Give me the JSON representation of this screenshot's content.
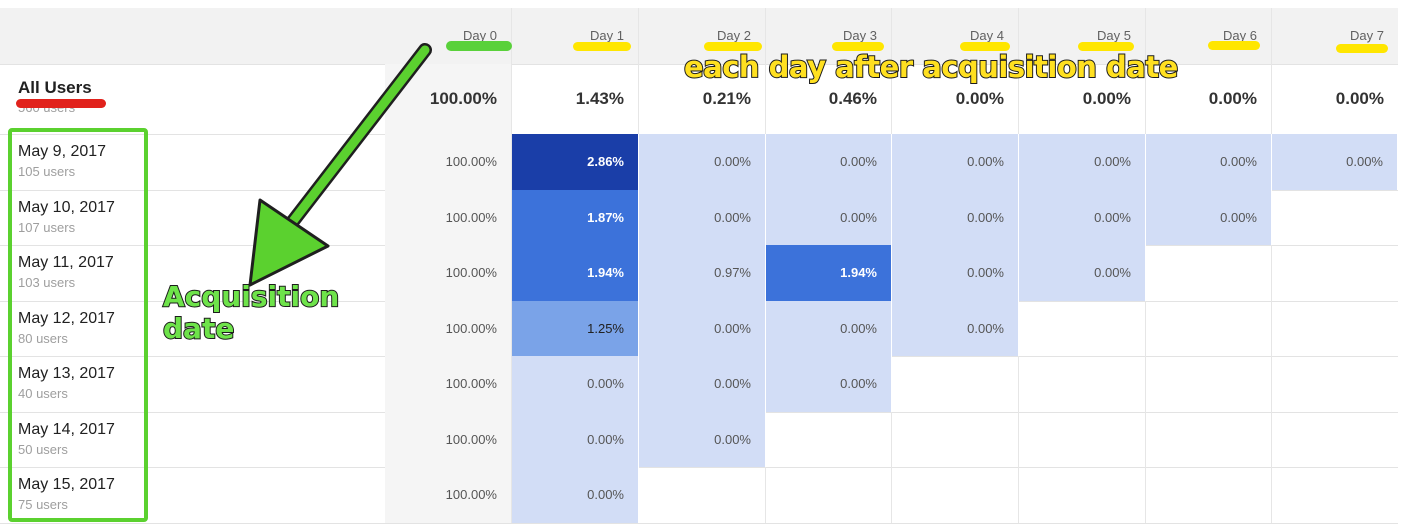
{
  "columns": [
    "Day 0",
    "Day 1",
    "Day 2",
    "Day 3",
    "Day 4",
    "Day 5",
    "Day 6",
    "Day 7"
  ],
  "all_users": {
    "label": "All Users",
    "sublabel": "560 users",
    "values": [
      "100.00%",
      "1.43%",
      "0.21%",
      "0.46%",
      "0.00%",
      "0.00%",
      "0.00%",
      "0.00%"
    ]
  },
  "rows": [
    {
      "date": "May 9, 2017",
      "users": "105 users",
      "values": [
        "100.00%",
        "2.86%",
        "0.00%",
        "0.00%",
        "0.00%",
        "0.00%",
        "0.00%",
        "0.00%"
      ]
    },
    {
      "date": "May 10, 2017",
      "users": "107 users",
      "values": [
        "100.00%",
        "1.87%",
        "0.00%",
        "0.00%",
        "0.00%",
        "0.00%",
        "0.00%"
      ]
    },
    {
      "date": "May 11, 2017",
      "users": "103 users",
      "values": [
        "100.00%",
        "1.94%",
        "0.97%",
        "1.94%",
        "0.00%",
        "0.00%"
      ]
    },
    {
      "date": "May 12, 2017",
      "users": "80 users",
      "values": [
        "100.00%",
        "1.25%",
        "0.00%",
        "0.00%",
        "0.00%"
      ]
    },
    {
      "date": "May 13, 2017",
      "users": "40 users",
      "values": [
        "100.00%",
        "0.00%",
        "0.00%",
        "0.00%"
      ]
    },
    {
      "date": "May 14, 2017",
      "users": "50 users",
      "values": [
        "100.00%",
        "0.00%",
        "0.00%"
      ]
    },
    {
      "date": "May 15, 2017",
      "users": "75 users",
      "values": [
        "100.00%",
        "0.00%"
      ]
    }
  ],
  "annotations": {
    "top": "each day after acquisition date",
    "left_line1": "Acquisition",
    "left_line2": "date"
  },
  "colors": {
    "cell_light": "#d2ddf6",
    "cell_dark": "#1a3ea8",
    "cell_mid": "#3c72da",
    "header_bg": "#f2f2f2",
    "highlight_yellow": "#ffe600",
    "highlight_green": "#59d13a",
    "highlight_red": "#e1221c"
  }
}
